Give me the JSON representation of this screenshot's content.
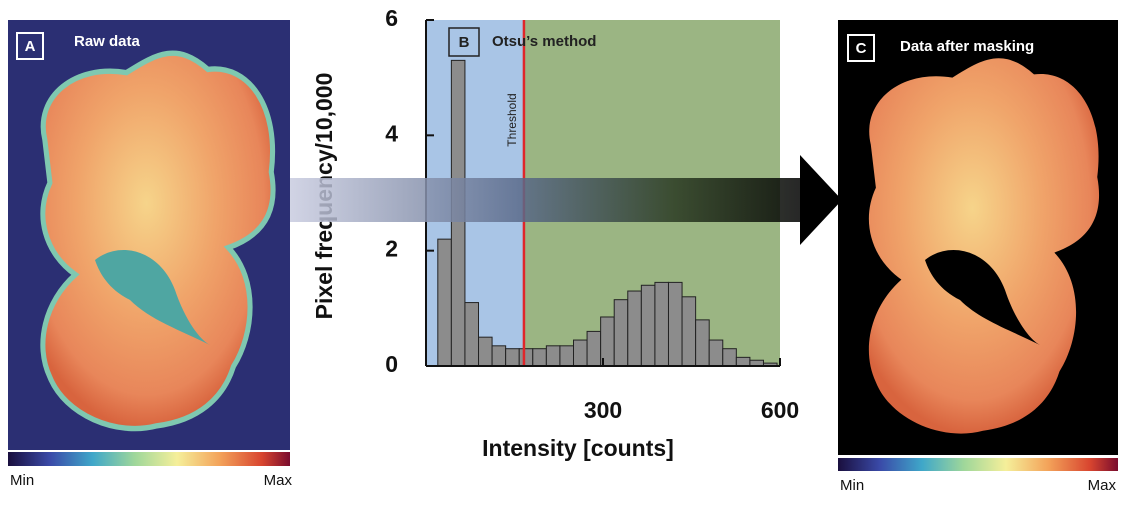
{
  "panel_a": {
    "letter": "A",
    "title": "Raw data",
    "colorbar": {
      "min": "Min",
      "max": "Max"
    }
  },
  "panel_c": {
    "letter": "C",
    "title": "Data after masking",
    "colorbar": {
      "min": "Min",
      "max": "Max"
    }
  },
  "chart_data": {
    "type": "histogram",
    "letter": "B",
    "title": "Otsu’s method",
    "annotation": "Threshold",
    "threshold": 166,
    "xlabel": "Intensity [counts]",
    "ylabel": "Pixel frequency/10,000",
    "bins": [
      20,
      43,
      66,
      89,
      112,
      135,
      158,
      181,
      204,
      227,
      250,
      273,
      296,
      319,
      342,
      365,
      388,
      411,
      434,
      457,
      480,
      503,
      526,
      549,
      572,
      595
    ],
    "values": [
      2.2,
      5.3,
      1.1,
      0.5,
      0.35,
      0.3,
      0.3,
      0.3,
      0.35,
      0.35,
      0.45,
      0.6,
      0.85,
      1.15,
      1.3,
      1.4,
      1.45,
      1.45,
      1.2,
      0.8,
      0.45,
      0.3,
      0.15,
      0.1,
      0.05
    ],
    "color": "#8c8c8c",
    "below_color": "#a9c5e6",
    "above_color": "#9bb583",
    "threshold_color": "#e0262a",
    "xlim": [
      0,
      600
    ],
    "ylim": [
      0,
      6
    ],
    "xticks": [
      300,
      600
    ],
    "yticks": [
      0,
      2,
      4,
      6
    ]
  }
}
